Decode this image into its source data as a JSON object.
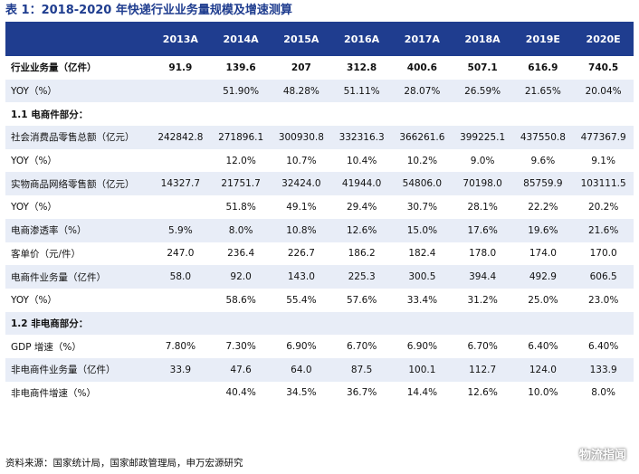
{
  "title": "表 1：2018-2020 年快递行业业务量规模及增速测算",
  "header": {
    "first": "",
    "years": [
      "2013A",
      "2014A",
      "2015A",
      "2016A",
      "2017A",
      "2018A",
      "2019E",
      "2020E"
    ]
  },
  "rows": [
    {
      "label": "行业业务量（亿件）",
      "bold": true,
      "shade": "white",
      "values": [
        "91.9",
        "139.6",
        "207",
        "312.8",
        "400.6",
        "507.1",
        "616.9",
        "740.5"
      ]
    },
    {
      "label": "YOY（%）",
      "shade": "alt",
      "values": [
        "",
        "51.90%",
        "48.28%",
        "51.11%",
        "28.07%",
        "26.59%",
        "21.65%",
        "20.04%"
      ]
    },
    {
      "label": "1.1 电商件部分：",
      "section": true,
      "shade": "white",
      "values": []
    },
    {
      "label": "社会消费品零售总额（亿元）",
      "shade": "alt",
      "values": [
        "242842.8",
        "271896.1",
        "300930.8",
        "332316.3",
        "366261.6",
        "399225.1",
        "437550.8",
        "477367.9"
      ]
    },
    {
      "label": "YOY（%）",
      "shade": "white",
      "values": [
        "",
        "12.0%",
        "10.7%",
        "10.4%",
        "10.2%",
        "9.0%",
        "9.6%",
        "9.1%"
      ]
    },
    {
      "label": "实物商品网络零售额（亿元）",
      "shade": "alt",
      "values": [
        "14327.7",
        "21751.7",
        "32424.0",
        "41944.0",
        "54806.0",
        "70198.0",
        "85759.9",
        "103111.5"
      ]
    },
    {
      "label": "YOY（%）",
      "shade": "white",
      "values": [
        "",
        "51.8%",
        "49.1%",
        "29.4%",
        "30.7%",
        "28.1%",
        "22.2%",
        "20.2%"
      ]
    },
    {
      "label": "电商渗透率（%）",
      "shade": "alt",
      "values": [
        "5.9%",
        "8.0%",
        "10.8%",
        "12.6%",
        "15.0%",
        "17.6%",
        "19.6%",
        "21.6%"
      ]
    },
    {
      "label": "客单价（元/件）",
      "shade": "white",
      "values": [
        "247.0",
        "236.4",
        "226.7",
        "186.2",
        "182.4",
        "178.0",
        "174.0",
        "170.0"
      ]
    },
    {
      "label": "电商件业务量（亿件）",
      "shade": "alt",
      "values": [
        "58.0",
        "92.0",
        "143.0",
        "225.3",
        "300.5",
        "394.4",
        "492.9",
        "606.5"
      ]
    },
    {
      "label": "YOY（%）",
      "shade": "white",
      "values": [
        "",
        "58.6%",
        "55.4%",
        "57.6%",
        "33.4%",
        "31.2%",
        "25.0%",
        "23.0%"
      ]
    },
    {
      "label": "1.2 非电商部分：",
      "section": true,
      "shade": "alt",
      "values": []
    },
    {
      "label": "GDP 增速（%）",
      "shade": "white",
      "values": [
        "7.80%",
        "7.30%",
        "6.90%",
        "6.70%",
        "6.90%",
        "6.70%",
        "6.40%",
        "6.40%"
      ]
    },
    {
      "label": "非电商件业务量（亿件）",
      "shade": "alt",
      "values": [
        "33.9",
        "47.6",
        "64.0",
        "87.5",
        "100.1",
        "112.7",
        "124.0",
        "133.9"
      ]
    },
    {
      "label": "非电商件增速（%）",
      "shade": "white",
      "values": [
        "",
        "40.4%",
        "34.5%",
        "36.7%",
        "14.4%",
        "12.6%",
        "10.0%",
        "8.0%"
      ]
    }
  ],
  "source": "资料来源：国家统计局，国家邮政管理局，申万宏源研究",
  "watermark": {
    "text": "物流指闻",
    "icon": "wechat-icon"
  }
}
